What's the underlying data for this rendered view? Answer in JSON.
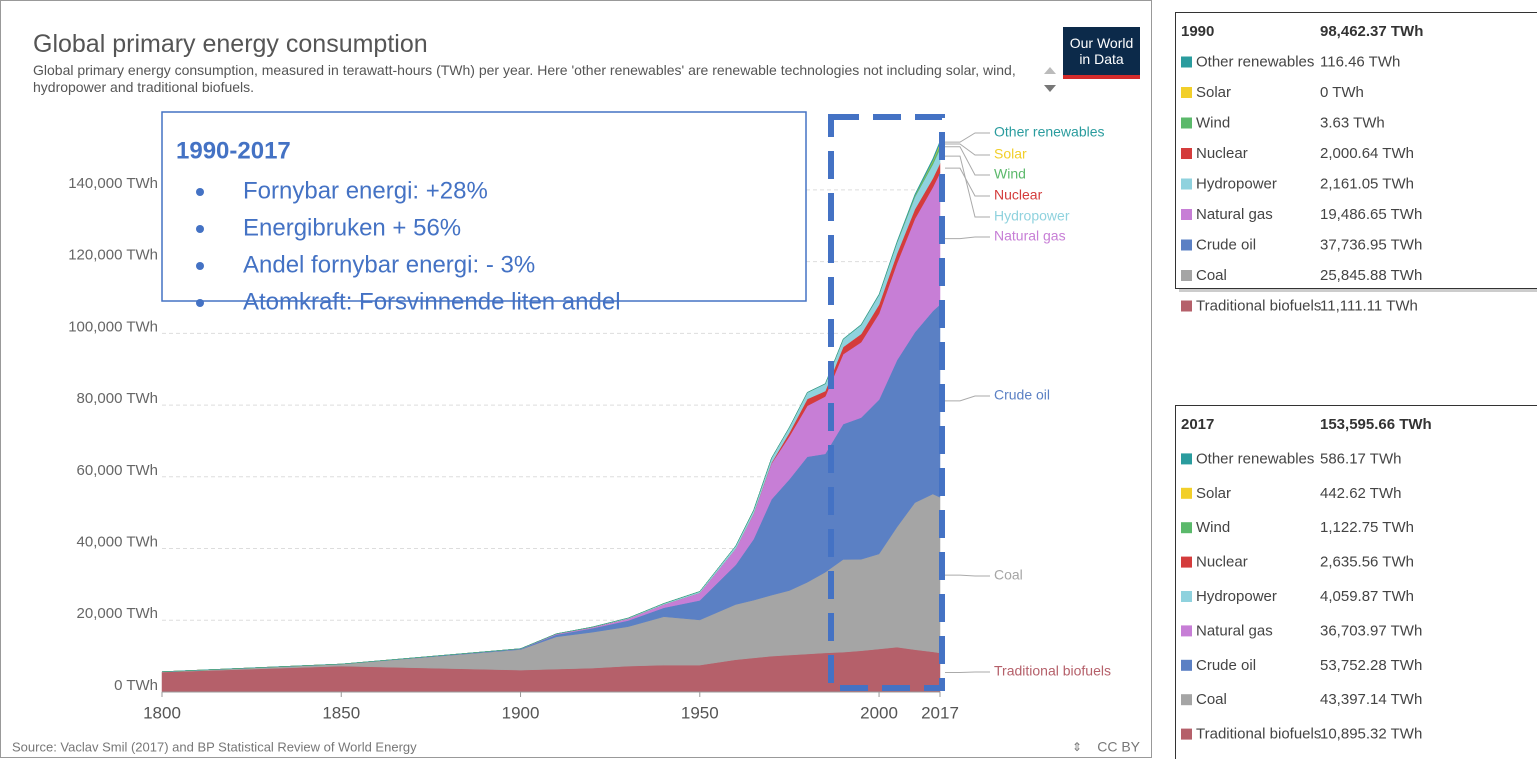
{
  "chart_data": {
    "type": "area",
    "stacked": true,
    "title": "Global primary energy consumption",
    "subtitle": "Global primary energy consumption, measured in terawatt-hours (TWh) per year. Here 'other renewables' are renewable technologies not including solar, wind, hydropower and traditional biofuels.",
    "logo": "Our World in Data",
    "source": "Source: Vaclav Smil (2017) and BP Statistical Review of World Energy",
    "license": "CC BY",
    "x": [
      1800,
      1850,
      1900,
      1910,
      1920,
      1930,
      1940,
      1950,
      1960,
      1965,
      1970,
      1975,
      1980,
      1985,
      1990,
      1995,
      2000,
      2005,
      2010,
      2015,
      2017
    ],
    "xlim": [
      1800,
      2017
    ],
    "xticks": [
      1800,
      1850,
      1900,
      1950,
      2000,
      2017
    ],
    "ylim": [
      0,
      150000
    ],
    "yticks": [
      {
        "value": 0,
        "label": "0 TWh"
      },
      {
        "value": 20000,
        "label": "20,000 TWh"
      },
      {
        "value": 40000,
        "label": "40,000 TWh"
      },
      {
        "value": 60000,
        "label": "60,000 TWh"
      },
      {
        "value": 80000,
        "label": "80,000 TWh"
      },
      {
        "value": 100000,
        "label": "100,000 TWh"
      },
      {
        "value": 120000,
        "label": "120,000 TWh"
      },
      {
        "value": 140000,
        "label": "140,000 TWh"
      }
    ],
    "grid": true,
    "series": [
      {
        "name": "Traditional biofuels",
        "color": "#b5606a",
        "values": [
          5556,
          7222,
          6111,
          6389,
          6667,
          7222,
          7500,
          7500,
          9000,
          9500,
          10000,
          10300,
          10600,
          10900,
          11111.11,
          11500,
          12000,
          12500,
          11800,
          11200,
          10895.32
        ]
      },
      {
        "name": "Coal",
        "color": "#a5a5a5",
        "values": [
          97,
          570,
          5728,
          9000,
          10000,
          11000,
          13500,
          12600,
          15400,
          16100,
          17000,
          18000,
          20000,
          22500,
          25845.88,
          25500,
          26500,
          33500,
          41000,
          44000,
          43397.14
        ]
      },
      {
        "name": "Crude oil",
        "color": "#5b80c4",
        "values": [
          0,
          0,
          181,
          600,
          1100,
          1700,
          2500,
          5444,
          11000,
          17000,
          26700,
          31000,
          35000,
          33000,
          37736.95,
          39500,
          43000,
          46500,
          47500,
          51000,
          53752.28
        ]
      },
      {
        "name": "Natural gas",
        "color": "#c77ed6",
        "values": [
          0,
          0,
          64,
          200,
          250,
          500,
          900,
          2092,
          4500,
          7000,
          10000,
          12000,
          14200,
          16000,
          19486.65,
          21000,
          24000,
          27000,
          31600,
          34500,
          36703.97
        ]
      },
      {
        "name": "Nuclear",
        "color": "#d43c3c",
        "values": [
          0,
          0,
          0,
          0,
          0,
          0,
          0,
          0,
          0,
          60,
          200,
          1000,
          1900,
          1500,
          2000.64,
          2300,
          2500,
          2700,
          2700,
          2500,
          2635.56
        ]
      },
      {
        "name": "Hydropower",
        "color": "#8fd2de",
        "values": [
          0,
          0,
          0,
          50,
          100,
          200,
          300,
          400,
          800,
          1000,
          1300,
          1500,
          1800,
          2000,
          2161.05,
          2500,
          2700,
          3000,
          3400,
          3900,
          4059.87
        ]
      },
      {
        "name": "Wind",
        "color": "#5bb96b",
        "values": [
          0,
          0,
          0,
          0,
          0,
          0,
          0,
          0,
          0,
          0,
          0,
          0,
          0,
          0,
          3.63,
          8,
          31,
          104,
          346,
          833,
          1122.75
        ]
      },
      {
        "name": "Solar",
        "color": "#f2cf2a",
        "values": [
          0,
          0,
          0,
          0,
          0,
          0,
          0,
          0,
          0,
          0,
          0,
          0,
          0,
          0,
          0,
          0.1,
          1,
          4,
          34,
          250,
          442.62
        ]
      },
      {
        "name": "Other renewables",
        "color": "#2a9c9e",
        "values": [
          0,
          0,
          0,
          0,
          0,
          0,
          0,
          0,
          0,
          0,
          30,
          50,
          70,
          90,
          116.46,
          150,
          190,
          270,
          400,
          530,
          586.17
        ]
      }
    ],
    "annotation": {
      "title": "1990-2017",
      "bullets": [
        "Fornybar energi: +28%",
        "Energibruken + 56%",
        "Andel fornybar energi: - 3%",
        "Atomkraft: Forsvinnende liten andel"
      ]
    }
  },
  "tables": [
    {
      "title": "1990",
      "total": "98,462.37 TWh",
      "rows": [
        {
          "name": "Other renewables",
          "value": "116.46 TWh"
        },
        {
          "name": "Solar",
          "value": "0 TWh"
        },
        {
          "name": "Wind",
          "value": "3.63 TWh"
        },
        {
          "name": "Nuclear",
          "value": "2,000.64 TWh"
        },
        {
          "name": "Hydropower",
          "value": "2,161.05 TWh"
        },
        {
          "name": "Natural gas",
          "value": "19,486.65 TWh"
        },
        {
          "name": "Crude oil",
          "value": "37,736.95 TWh"
        },
        {
          "name": "Coal",
          "value": "25,845.88 TWh"
        },
        {
          "name": "Traditional biofuels",
          "value": "11,111.11 TWh"
        }
      ]
    },
    {
      "title": "2017",
      "total": "153,595.66 TWh",
      "rows": [
        {
          "name": "Other renewables",
          "value": "586.17 TWh"
        },
        {
          "name": "Solar",
          "value": "442.62 TWh"
        },
        {
          "name": "Wind",
          "value": "1,122.75 TWh"
        },
        {
          "name": "Nuclear",
          "value": "2,635.56 TWh"
        },
        {
          "name": "Hydropower",
          "value": "4,059.87 TWh"
        },
        {
          "name": "Natural gas",
          "value": "36,703.97 TWh"
        },
        {
          "name": "Crude oil",
          "value": "53,752.28 TWh"
        },
        {
          "name": "Coal",
          "value": "43,397.14 TWh"
        },
        {
          "name": "Traditional biofuels",
          "value": "10,895.32 TWh"
        }
      ]
    }
  ]
}
